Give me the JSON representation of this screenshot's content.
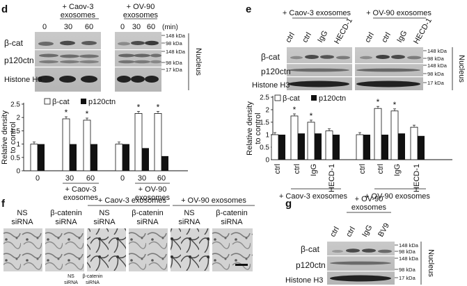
{
  "panel_letters": {
    "d": "d",
    "e": "e",
    "f": "f",
    "g": "g"
  },
  "d": {
    "group1": "+ Caov-3",
    "group1b": "exosomes",
    "group2": "+ OV-90",
    "group2b": "exosomes",
    "time_unit": "(min)",
    "times": [
      "0",
      "30",
      "60"
    ],
    "blot_labels": [
      "β-cat",
      "p120ctn",
      "Histone H3"
    ],
    "kda": [
      "148 kDa",
      "98 kDa",
      "148 kDa",
      "98 kDa",
      "17 kDa"
    ],
    "side_label": "Nucleus"
  },
  "e": {
    "group1": "+ Caov-3 exosomes",
    "group2": "+ OV-90 exosomes",
    "lanes": [
      "ctrl",
      "ctrl",
      "IgG",
      "HECD-1"
    ],
    "blot_labels": [
      "β-cat",
      "p120ctn",
      "Histone H3"
    ],
    "kda": [
      "148 kDa",
      "98 kDa",
      "148 kDa",
      "98 kDa",
      "17 kDa"
    ],
    "side_label": "Nucleus"
  },
  "f": {
    "header1": "+ Caov-3 exosomes",
    "header2": "+ OV-90 exosomes",
    "cols": [
      [
        "NS",
        "siRNA"
      ],
      [
        "β-catenin",
        "siRNA"
      ],
      [
        "NS",
        "siRNA"
      ],
      [
        "β-catenin",
        "siRNA"
      ],
      [
        "NS",
        "siRNA"
      ],
      [
        "β-catenin",
        "siRNA"
      ]
    ],
    "footer": [
      "NS",
      "siRNA",
      "β-catenin",
      "siRNA"
    ]
  },
  "g": {
    "header1": "+ OV-90",
    "header2": "exosomes",
    "lanes": [
      "ctrl",
      "ctrl",
      "IgG",
      "BV9"
    ],
    "blot_labels": [
      "β-cat",
      "p120ctn",
      "Histone H3"
    ],
    "kda": [
      "148 kDa",
      "98 kDa",
      "148 kDa",
      "98 kDa",
      "17 kDa"
    ],
    "side_label": "Nucleus"
  },
  "chart_data": [
    {
      "type": "bar",
      "panel": "d",
      "ylabel": "Relative density to control",
      "ylim": [
        0,
        2.5
      ],
      "yticks": [
        "0",
        "0.5",
        "1",
        "1.5",
        "2",
        "2.5"
      ],
      "legend": [
        "β-cat",
        "p120ctn"
      ],
      "categories": [
        "0",
        "30",
        "60",
        "0",
        "30",
        "60"
      ],
      "group_labels": [
        "+ Caov-3 exosomes",
        "+ OV-90 exosomes"
      ],
      "series": [
        {
          "name": "β-cat",
          "values": [
            1.0,
            1.95,
            1.9,
            1.0,
            2.15,
            2.15
          ]
        },
        {
          "name": "p120ctn",
          "values": [
            1.0,
            1.0,
            1.0,
            1.0,
            0.85,
            0.55
          ]
        }
      ],
      "significance": [
        false,
        true,
        true,
        false,
        true,
        true
      ],
      "colors": {
        "β-cat": "#ffffff",
        "p120ctn": "#111111"
      }
    },
    {
      "type": "bar",
      "panel": "e",
      "ylabel": "Relative density to control",
      "ylim": [
        0,
        2.5
      ],
      "yticks": [
        "0",
        "0.5",
        "1",
        "1.5",
        "2",
        "2.5"
      ],
      "legend": [
        "β-cat",
        "p120ctn"
      ],
      "categories": [
        "ctrl",
        "ctrl",
        "IgG",
        "HECD-1",
        "ctrl",
        "ctrl",
        "IgG",
        "HECD-1"
      ],
      "group_labels": [
        "+ Caov-3 exosomes",
        "+ OV-90 exosomes"
      ],
      "series": [
        {
          "name": "β-cat",
          "values": [
            1.0,
            1.75,
            1.5,
            1.15,
            1.0,
            2.05,
            1.95,
            1.3
          ]
        },
        {
          "name": "p120ctn",
          "values": [
            1.0,
            1.05,
            1.05,
            1.0,
            1.0,
            1.0,
            1.05,
            0.95
          ]
        }
      ],
      "significance": [
        false,
        true,
        true,
        false,
        false,
        true,
        true,
        false
      ],
      "colors": {
        "β-cat": "#ffffff",
        "p120ctn": "#111111"
      }
    }
  ]
}
